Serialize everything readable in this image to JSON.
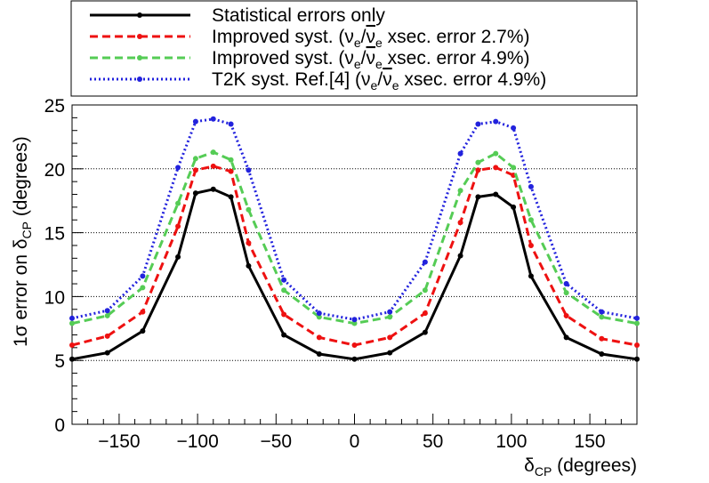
{
  "chart_data": {
    "type": "line",
    "xlabel": "δ",
    "xlabel_sub": "CP",
    "xlabel_unit": " (degrees)",
    "ylabel": "1σ error on δ",
    "ylabel_sub": "CP",
    "ylabel_unit": " (degrees)",
    "xlim": [
      -180,
      180
    ],
    "ylim": [
      0,
      25
    ],
    "x_ticks": [
      -150,
      -100,
      -50,
      0,
      50,
      100,
      150
    ],
    "x_tick_labels": [
      "−150",
      "−100",
      "−50",
      "0",
      "50",
      "100",
      "150"
    ],
    "y_ticks": [
      0,
      5,
      10,
      15,
      20,
      25
    ],
    "y_tick_labels": [
      "0",
      "5",
      "10",
      "15",
      "20",
      "25"
    ],
    "grid": "horizontal-dotted",
    "legend_position": "top",
    "x": [
      -180,
      -157.5,
      -135,
      -112.5,
      -101.25,
      -90,
      -78.75,
      -67.5,
      -45,
      -22.5,
      0,
      22.5,
      45,
      67.5,
      78.75,
      90,
      101.25,
      112.5,
      135,
      157.5,
      180
    ],
    "series": [
      {
        "name": "Statistical errors only",
        "color": "#000000",
        "style": "solid",
        "values": [
          5.1,
          5.6,
          7.3,
          13.1,
          18.1,
          18.4,
          17.8,
          12.4,
          7.0,
          5.5,
          5.1,
          5.6,
          7.2,
          13.2,
          17.8,
          18.0,
          17.0,
          11.6,
          6.8,
          5.5,
          5.1
        ]
      },
      {
        "name": "Improved syst. (ν/ν xsec. error 2.7%)",
        "legend_prefix": "Improved syst. (",
        "legend_suffix": " xsec. error 2.7%)",
        "color": "#ee1111",
        "style": "dashed",
        "values": [
          6.2,
          6.9,
          8.8,
          15.5,
          19.9,
          20.2,
          19.8,
          14.2,
          8.6,
          6.8,
          6.2,
          6.8,
          8.7,
          15.8,
          19.9,
          20.1,
          19.5,
          14.0,
          8.5,
          6.7,
          6.2
        ]
      },
      {
        "name": "Improved syst. (ν/ν xsec. error 4.9%)",
        "legend_prefix": "Improved syst. (",
        "legend_suffix": " xsec. error 4.9%)",
        "color": "#55cc55",
        "style": "dashed",
        "values": [
          7.9,
          8.5,
          10.7,
          17.3,
          20.8,
          21.3,
          20.7,
          16.8,
          10.5,
          8.4,
          7.9,
          8.4,
          10.5,
          18.3,
          20.5,
          21.2,
          20.1,
          16.0,
          10.3,
          8.4,
          7.9
        ]
      },
      {
        "name": "T2K syst. Ref.[4] (ν/ν xsec. error 4.9%)",
        "legend_prefix": "T2K syst. Ref.[4] (",
        "legend_suffix": " xsec. error 4.9%)",
        "color": "#2222dd",
        "style": "dotted",
        "values": [
          8.3,
          8.9,
          11.6,
          20.1,
          23.7,
          23.9,
          23.5,
          19.9,
          11.3,
          8.7,
          8.2,
          8.8,
          12.7,
          21.2,
          23.5,
          23.7,
          23.2,
          18.6,
          11.0,
          8.8,
          8.3
        ]
      }
    ]
  },
  "legend_nu": {
    "nu": "ν",
    "nu_sub": "e",
    "slash": "/",
    "nubar": "ν",
    "nubar_sub": "e"
  }
}
